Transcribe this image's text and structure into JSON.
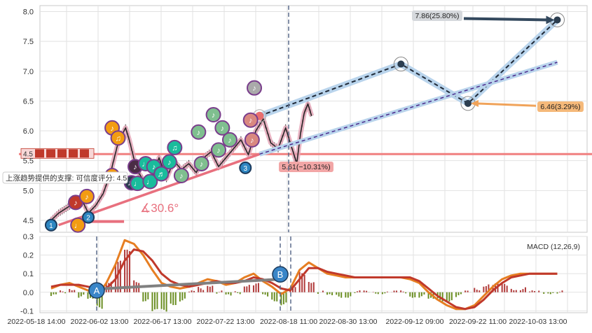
{
  "chart_data": [
    {
      "type": "line",
      "panel": "price",
      "yticks": [
        "8.0",
        "7.5",
        "7.0",
        "6.5",
        "6.0",
        "5.5",
        "5.0",
        "4.5"
      ],
      "ylim": [
        4.3,
        8.1
      ],
      "grid": true,
      "support_level": 5.61,
      "support_note": "上涨趋势提供的支撑: 可信度评分: 4.5",
      "left_marker": "4.5",
      "angle_label": "∡30.6°",
      "price_series": [
        {
          "t": 0.0,
          "v": 4.5
        },
        {
          "t": 1.0,
          "v": 4.62
        },
        {
          "t": 2.0,
          "v": 4.7
        },
        {
          "t": 3.0,
          "v": 4.78
        },
        {
          "t": 4.0,
          "v": 4.88
        },
        {
          "t": 5.0,
          "v": 4.62
        },
        {
          "t": 6.0,
          "v": 4.75
        },
        {
          "t": 7.0,
          "v": 4.95
        },
        {
          "t": 8.0,
          "v": 5.3
        },
        {
          "t": 9.0,
          "v": 5.8
        },
        {
          "t": 10.0,
          "v": 6.05
        },
        {
          "t": 10.5,
          "v": 5.85
        },
        {
          "t": 11.5,
          "v": 5.35
        },
        {
          "t": 12.5,
          "v": 5.15
        },
        {
          "t": 13.5,
          "v": 5.2
        },
        {
          "t": 14.5,
          "v": 5.55
        },
        {
          "t": 15.5,
          "v": 5.2
        },
        {
          "t": 16.5,
          "v": 5.5
        },
        {
          "t": 17.5,
          "v": 5.35
        },
        {
          "t": 18.5,
          "v": 5.45
        },
        {
          "t": 19.5,
          "v": 5.3
        },
        {
          "t": 20.5,
          "v": 5.55
        },
        {
          "t": 21.5,
          "v": 5.65
        },
        {
          "t": 22.5,
          "v": 5.4
        },
        {
          "t": 23.5,
          "v": 5.55
        },
        {
          "t": 24.5,
          "v": 5.7
        },
        {
          "t": 25.5,
          "v": 5.85
        },
        {
          "t": 26.5,
          "v": 5.6
        },
        {
          "t": 27.5,
          "v": 6.0
        },
        {
          "t": 28.5,
          "v": 6.2
        },
        {
          "t": 29.5,
          "v": 5.8
        },
        {
          "t": 30.5,
          "v": 5.7
        },
        {
          "t": 31.5,
          "v": 6.05
        },
        {
          "t": 32.5,
          "v": 5.65
        },
        {
          "t": 33.0,
          "v": 5.45
        },
        {
          "t": 33.5,
          "v": 5.95
        },
        {
          "t": 34.0,
          "v": 6.3
        },
        {
          "t": 34.5,
          "v": 6.45
        },
        {
          "t": 35.0,
          "v": 6.25
        }
      ],
      "markers": [
        {
          "t": 0.0,
          "v": 4.42,
          "label": "1",
          "color": "#2e86c1"
        },
        {
          "t": 3.3,
          "v": 4.8,
          "label": "♪",
          "color": "#c0392b"
        },
        {
          "t": 3.6,
          "v": 4.42,
          "label": "♩",
          "color": "#f39c12"
        },
        {
          "t": 4.8,
          "v": 4.9,
          "label": "♪",
          "color": "#f39c12"
        },
        {
          "t": 5.0,
          "v": 4.55,
          "label": "2",
          "color": "#2e86c1"
        },
        {
          "t": 8.2,
          "v": 5.25,
          "label": "♪",
          "color": "#f39c12"
        },
        {
          "t": 8.2,
          "v": 6.05,
          "label": "♪",
          "color": "#f39c12"
        },
        {
          "t": 9.0,
          "v": 5.88,
          "label": "♫",
          "color": "#f39c12"
        },
        {
          "t": 10.8,
          "v": 5.13,
          "label": "♩",
          "color": "#2c3e50"
        },
        {
          "t": 11.3,
          "v": 5.4,
          "label": "♪",
          "color": "#4a2c45"
        },
        {
          "t": 11.6,
          "v": 5.12,
          "label": "♩",
          "color": "#1abc9c"
        },
        {
          "t": 12.7,
          "v": 5.45,
          "label": "♩",
          "color": "#1abc9c"
        },
        {
          "t": 13.3,
          "v": 5.15,
          "label": "♩",
          "color": "#1abc9c"
        },
        {
          "t": 13.8,
          "v": 5.4,
          "label": "♪",
          "color": "#1abc9c"
        },
        {
          "t": 14.8,
          "v": 5.28,
          "label": "♬",
          "color": "#1abc9c"
        },
        {
          "t": 15.9,
          "v": 5.48,
          "label": "♪",
          "color": "#1abc9c"
        },
        {
          "t": 16.6,
          "v": 5.72,
          "label": "♫",
          "color": "#1abc9c"
        },
        {
          "t": 17.5,
          "v": 5.25,
          "label": "♪",
          "color": "#7fbf8f"
        },
        {
          "t": 19.8,
          "v": 5.98,
          "label": "♪",
          "color": "#7fbf8f"
        },
        {
          "t": 20.2,
          "v": 5.45,
          "label": "♪",
          "color": "#7fbf8f"
        },
        {
          "t": 21.8,
          "v": 6.27,
          "label": "♪",
          "color": "#7fbf8f"
        },
        {
          "t": 22.5,
          "v": 5.68,
          "label": "♪",
          "color": "#7fbf8f"
        },
        {
          "t": 23.0,
          "v": 6.05,
          "label": "♪",
          "color": "#7fbf8f"
        },
        {
          "t": 24.0,
          "v": 5.85,
          "label": "♪",
          "color": "#7fbf8f"
        },
        {
          "t": 26.1,
          "v": 5.38,
          "label": "3",
          "color": "#2e86c1"
        },
        {
          "t": 26.8,
          "v": 6.18,
          "label": "♪",
          "color": "#d98880"
        },
        {
          "t": 27.0,
          "v": 5.85,
          "label": "♪",
          "color": "#d98880"
        },
        {
          "t": 27.3,
          "v": 6.72,
          "label": "♪",
          "color": "#aaaaaa"
        }
      ],
      "forecast_points": [
        {
          "t": 28.0,
          "v": 6.25
        },
        {
          "t": 47.0,
          "v": 7.12
        },
        {
          "t": 56.0,
          "v": 6.46
        },
        {
          "t": 68.0,
          "v": 7.86
        }
      ],
      "forecast_label_high": "7.86(25.80%)",
      "forecast_label_mid": "6.46(3.29%)",
      "forecast_label_low": "5.61(−10.31%)"
    },
    {
      "type": "line",
      "panel": "macd",
      "title": "MACD (12,26,9)",
      "yticks": [
        "0.3",
        "0.2",
        "0.1",
        "0.0",
        "-0.1"
      ],
      "ylim": [
        -0.11,
        0.3
      ],
      "xticks": [
        "2022-05-18 14:00",
        "2022-06-02 13:00",
        "2022-06-17 13:00",
        "2022-07-22 13:00",
        "2022-08-18 11:00",
        "2022-08-30 13:00",
        "2022-09-12 09:00",
        "2022-09-22 11:00",
        "2022-10-03 13:00"
      ],
      "markers": [
        {
          "label": "A",
          "v": 0.01
        },
        {
          "label": "B",
          "v": 0.07
        }
      ],
      "series": [
        {
          "color": "#e67e22",
          "values": [
            0.02,
            0.04,
            0.05,
            0.03,
            0.01,
            -0.02,
            0.05,
            0.15,
            0.28,
            0.26,
            0.2,
            0.12,
            0.05,
            0.03,
            0.02,
            0.03,
            0.05,
            0.07,
            0.06,
            0.04,
            0.05,
            0.08,
            0.1,
            0.06,
            0.03,
            -0.01,
            0.02,
            0.12,
            0.16,
            0.13,
            0.1,
            0.09,
            0.08,
            0.08,
            0.08,
            0.08,
            0.08,
            0.08,
            0.08,
            0.07,
            0.05,
            0.0,
            -0.04,
            -0.07,
            -0.09,
            -0.09,
            -0.07,
            -0.02,
            0.03,
            0.07,
            0.09,
            0.1,
            0.1,
            0.1,
            0.1,
            0.1
          ]
        },
        {
          "color": "#c0392b",
          "values": [
            0.03,
            0.04,
            0.04,
            0.04,
            0.03,
            0.02,
            0.02,
            0.07,
            0.17,
            0.23,
            0.22,
            0.17,
            0.1,
            0.06,
            0.04,
            0.03,
            0.04,
            0.05,
            0.06,
            0.05,
            0.05,
            0.06,
            0.08,
            0.07,
            0.05,
            0.02,
            0.01,
            0.07,
            0.13,
            0.13,
            0.11,
            0.1,
            0.09,
            0.08,
            0.08,
            0.08,
            0.08,
            0.08,
            0.08,
            0.08,
            0.06,
            0.02,
            -0.02,
            -0.05,
            -0.08,
            -0.09,
            -0.08,
            -0.04,
            0.01,
            0.05,
            0.08,
            0.09,
            0.1,
            0.1,
            0.1,
            0.1
          ]
        }
      ]
    }
  ],
  "colors": {
    "support": "#f08080",
    "trend": "#e8707e",
    "forecast_band": "#b9d4ec",
    "forecast_black": "#1f2937",
    "forecast_purple": "#4b2a8c",
    "label_pink": "#f2a6a6",
    "label_orange": "#f5b97a",
    "label_grey": "#d5d8dc"
  }
}
